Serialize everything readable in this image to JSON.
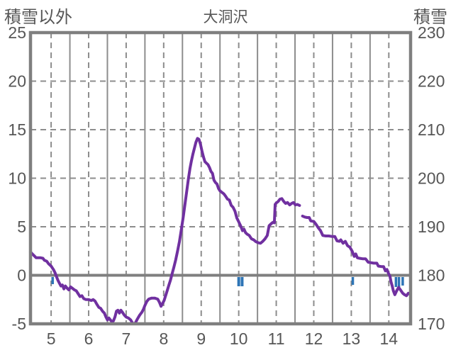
{
  "chart_data": {
    "type": "line",
    "title": "大洞沢",
    "left_axis": {
      "label": "積雪以外",
      "min": -5,
      "max": 25,
      "ticks": [
        25,
        20,
        15,
        10,
        5,
        0,
        -5
      ]
    },
    "right_axis": {
      "label": "積雪",
      "min": 170,
      "max": 230,
      "ticks": [
        230,
        220,
        210,
        200,
        190,
        180,
        170
      ]
    },
    "x_axis": {
      "min": 4.45,
      "max": 14.58,
      "ticks": [
        5,
        6,
        7,
        8,
        9,
        10,
        11,
        12,
        13,
        14
      ]
    },
    "grid": {
      "v_dashed": [
        5,
        6,
        7,
        8,
        9,
        10,
        11,
        12,
        13,
        14
      ],
      "v_solid": [
        5.5,
        6.5,
        7.5,
        8.5,
        9.5,
        10.5,
        11.5,
        12.5,
        13.5
      ],
      "h_dashed": [
        20,
        15,
        10,
        5
      ],
      "zero_line": 0
    },
    "colors": {
      "line": "#7030A0",
      "event": "#2E75B6",
      "axis": "#7F7F7F",
      "grid": "#8D8D8D",
      "text": "#565656"
    },
    "series": [
      {
        "color": "#7030A0",
        "axis": "left",
        "segments": [
          [
            [
              4.45,
              2.4
            ],
            [
              4.5,
              2.2
            ],
            [
              4.55,
              2.0
            ],
            [
              4.6,
              1.8
            ],
            [
              4.72,
              1.8
            ],
            [
              4.78,
              1.75
            ],
            [
              4.82,
              1.55
            ],
            [
              4.88,
              1.45
            ],
            [
              4.93,
              1.2
            ],
            [
              5.0,
              0.95
            ],
            [
              5.06,
              0.6
            ],
            [
              5.1,
              0.3
            ],
            [
              5.14,
              -0.1
            ],
            [
              5.18,
              -0.5
            ],
            [
              5.22,
              -0.8
            ],
            [
              5.26,
              -1.1
            ],
            [
              5.3,
              -1.0
            ],
            [
              5.34,
              -1.4
            ],
            [
              5.38,
              -1.1
            ],
            [
              5.43,
              -1.35
            ],
            [
              5.47,
              -1.5
            ],
            [
              5.52,
              -1.2
            ],
            [
              5.57,
              -1.35
            ],
            [
              5.62,
              -1.5
            ],
            [
              5.67,
              -1.6
            ],
            [
              5.72,
              -1.9
            ],
            [
              5.77,
              -2.2
            ],
            [
              5.82,
              -2.1
            ],
            [
              5.87,
              -2.4
            ],
            [
              5.93,
              -2.5
            ],
            [
              6.0,
              -2.5
            ],
            [
              6.07,
              -2.6
            ],
            [
              6.12,
              -2.5
            ],
            [
              6.17,
              -2.65
            ],
            [
              6.22,
              -3.0
            ],
            [
              6.27,
              -3.3
            ],
            [
              6.32,
              -3.4
            ],
            [
              6.37,
              -3.7
            ],
            [
              6.42,
              -3.9
            ],
            [
              6.46,
              -4.3
            ],
            [
              6.5,
              -4.6
            ],
            [
              6.54,
              -4.4
            ],
            [
              6.58,
              -4.6
            ],
            [
              6.62,
              -4.8
            ],
            [
              6.66,
              -4.7
            ],
            [
              6.7,
              -4.3
            ],
            [
              6.74,
              -3.7
            ],
            [
              6.78,
              -3.6
            ],
            [
              6.82,
              -3.9
            ],
            [
              6.86,
              -3.6
            ],
            [
              6.9,
              -3.8
            ],
            [
              6.95,
              -4.1
            ],
            [
              7.0,
              -4.3
            ],
            [
              7.06,
              -4.4
            ],
            [
              7.12,
              -4.6
            ],
            [
              7.18,
              -5.0
            ],
            [
              7.24,
              -4.95
            ],
            [
              7.3,
              -4.5
            ],
            [
              7.36,
              -4.1
            ],
            [
              7.42,
              -3.8
            ],
            [
              7.46,
              -3.5
            ],
            [
              7.5,
              -3.1
            ],
            [
              7.55,
              -2.7
            ],
            [
              7.6,
              -2.45
            ],
            [
              7.68,
              -2.35
            ],
            [
              7.76,
              -2.35
            ],
            [
              7.84,
              -2.45
            ],
            [
              7.89,
              -2.8
            ],
            [
              7.93,
              -3.2
            ],
            [
              7.97,
              -2.9
            ],
            [
              8.01,
              -2.6
            ],
            [
              8.06,
              -2.0
            ],
            [
              8.1,
              -1.5
            ],
            [
              8.14,
              -1.0
            ],
            [
              8.18,
              -0.5
            ],
            [
              8.22,
              0.1
            ],
            [
              8.27,
              0.8
            ],
            [
              8.32,
              1.6
            ],
            [
              8.37,
              2.5
            ],
            [
              8.42,
              3.5
            ],
            [
              8.47,
              4.7
            ],
            [
              8.52,
              6.0
            ],
            [
              8.57,
              7.4
            ],
            [
              8.62,
              8.8
            ],
            [
              8.66,
              10.0
            ],
            [
              8.7,
              11.0
            ],
            [
              8.74,
              11.8
            ],
            [
              8.78,
              12.5
            ],
            [
              8.82,
              13.1
            ],
            [
              8.86,
              13.7
            ],
            [
              8.9,
              14.1
            ],
            [
              8.94,
              14.0
            ],
            [
              8.98,
              13.5
            ],
            [
              9.02,
              12.8
            ],
            [
              9.06,
              12.2
            ],
            [
              9.1,
              11.7
            ],
            [
              9.14,
              11.55
            ],
            [
              9.18,
              11.4
            ],
            [
              9.22,
              11.1
            ],
            [
              9.26,
              10.7
            ],
            [
              9.3,
              10.5
            ],
            [
              9.34,
              9.8
            ],
            [
              9.38,
              9.55
            ],
            [
              9.42,
              9.4
            ],
            [
              9.46,
              8.95
            ],
            [
              9.5,
              8.7
            ],
            [
              9.55,
              8.55
            ],
            [
              9.6,
              8.4
            ],
            [
              9.65,
              8.15
            ],
            [
              9.7,
              7.85
            ],
            [
              9.75,
              7.75
            ],
            [
              9.8,
              7.2
            ],
            [
              9.85,
              7.0
            ],
            [
              9.9,
              6.6
            ],
            [
              9.95,
              5.9
            ],
            [
              10.0,
              5.5
            ],
            [
              10.05,
              5.1
            ],
            [
              10.1,
              4.6
            ],
            [
              10.14,
              4.75
            ],
            [
              10.18,
              4.4
            ],
            [
              10.22,
              4.25
            ],
            [
              10.28,
              4.1
            ],
            [
              10.34,
              3.75
            ],
            [
              10.4,
              3.65
            ],
            [
              10.46,
              3.45
            ],
            [
              10.52,
              3.35
            ],
            [
              10.58,
              3.3
            ],
            [
              10.64,
              3.5
            ],
            [
              10.7,
              3.75
            ],
            [
              10.76,
              4.1
            ],
            [
              10.81,
              5.1
            ],
            [
              10.86,
              5.3
            ],
            [
              10.91,
              5.45
            ],
            [
              10.95,
              5.4
            ],
            [
              10.97,
              7.3
            ],
            [
              11.0,
              7.45
            ],
            [
              11.05,
              7.6
            ],
            [
              11.1,
              7.85
            ],
            [
              11.15,
              7.9
            ],
            [
              11.2,
              7.6
            ],
            [
              11.25,
              7.4
            ],
            [
              11.3,
              7.5
            ],
            [
              11.36,
              7.25
            ],
            [
              11.41,
              7.4
            ],
            [
              11.46,
              7.5
            ],
            [
              11.51,
              7.25
            ],
            [
              11.56,
              7.3
            ],
            [
              11.62,
              7.2
            ]
          ],
          [
            [
              11.7,
              6.1
            ],
            [
              11.76,
              6.0
            ],
            [
              11.82,
              5.95
            ],
            [
              11.88,
              5.95
            ],
            [
              11.92,
              5.6
            ],
            [
              12.0,
              5.55
            ],
            [
              12.06,
              5.25
            ],
            [
              12.12,
              4.9
            ],
            [
              12.18,
              4.6
            ],
            [
              12.24,
              4.1
            ],
            [
              12.32,
              4.05
            ],
            [
              12.4,
              4.05
            ],
            [
              12.48,
              4.0
            ],
            [
              12.56,
              4.0
            ],
            [
              12.62,
              3.55
            ],
            [
              12.68,
              3.5
            ],
            [
              12.72,
              3.65
            ],
            [
              12.78,
              3.3
            ],
            [
              12.84,
              3.5
            ],
            [
              12.9,
              3.05
            ],
            [
              12.96,
              2.9
            ],
            [
              13.02,
              2.5
            ],
            [
              13.08,
              1.95
            ],
            [
              13.12,
              2.2
            ],
            [
              13.16,
              1.8
            ],
            [
              13.22,
              1.75
            ],
            [
              13.3,
              1.7
            ],
            [
              13.38,
              1.7
            ],
            [
              13.45,
              1.35
            ],
            [
              13.52,
              1.3
            ],
            [
              13.6,
              1.25
            ],
            [
              13.68,
              1.25
            ],
            [
              13.72,
              0.95
            ],
            [
              13.8,
              0.9
            ],
            [
              13.86,
              0.9
            ],
            [
              13.91,
              0.45
            ],
            [
              13.95,
              0.6
            ],
            [
              13.99,
              0.2
            ],
            [
              14.03,
              -0.1
            ],
            [
              14.06,
              -0.7
            ],
            [
              14.09,
              -1.1
            ],
            [
              14.12,
              -1.6
            ],
            [
              14.16,
              -2.0
            ],
            [
              14.21,
              -1.6
            ],
            [
              14.26,
              -1.25
            ],
            [
              14.31,
              -1.5
            ],
            [
              14.37,
              -1.85
            ],
            [
              14.42,
              -2.0
            ],
            [
              14.47,
              -2.1
            ],
            [
              14.52,
              -1.85
            ],
            [
              14.56,
              -1.9
            ]
          ]
        ]
      }
    ],
    "event_marks": [
      {
        "x": 5.04,
        "w": 3.5,
        "d": 10
      },
      {
        "x": 10.0,
        "w": 4,
        "d": 13
      },
      {
        "x": 10.09,
        "w": 4,
        "d": 13
      },
      {
        "x": 13.04,
        "w": 3.5,
        "d": 11
      },
      {
        "x": 14.19,
        "w": 3.5,
        "d": 14
      },
      {
        "x": 14.27,
        "w": 3.5,
        "d": 14
      },
      {
        "x": 14.37,
        "w": 3.5,
        "d": 12
      }
    ]
  }
}
